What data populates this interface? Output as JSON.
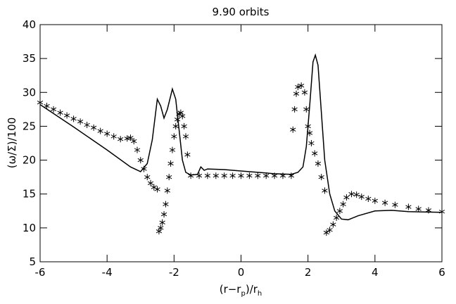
{
  "chart_data": {
    "type": "line",
    "title": "9.90 orbits",
    "x_label": [
      "(r−r",
      "p",
      ")/r",
      "h"
    ],
    "y_label": "(ω/Σ)/100",
    "xlim": [
      -6,
      6
    ],
    "xticks": [
      -6,
      -4,
      -2,
      0,
      2,
      4,
      6
    ],
    "ylim": [
      5,
      40
    ],
    "yticks": [
      5,
      10,
      15,
      20,
      25,
      30,
      35,
      40
    ],
    "color": "#000000",
    "series": [
      {
        "style": "solid",
        "x": [
          -6,
          -5,
          -4,
          -3.3,
          -3.0,
          -2.8,
          -2.65,
          -2.5,
          -2.4,
          -2.3,
          -2.2,
          -2.05,
          -1.95,
          -1.85,
          -1.75,
          -1.65,
          -1.5,
          -1.3,
          -1.2,
          -1.1,
          -1.0,
          -0.5,
          0,
          0.5,
          1.0,
          1.5,
          1.7,
          1.85,
          1.95,
          2.05,
          2.15,
          2.22,
          2.3,
          2.4,
          2.5,
          2.65,
          2.8,
          3.0,
          3.2,
          3.5,
          4.0,
          4.5,
          5.0,
          6.0
        ],
        "values": [
          28.2,
          24.9,
          21.5,
          19.0,
          18.3,
          19.5,
          23,
          29.0,
          28.0,
          26.2,
          27.5,
          30.5,
          29.0,
          24.5,
          20.0,
          18.2,
          17.8,
          17.9,
          19.0,
          18.5,
          18.7,
          18.6,
          18.4,
          18.2,
          18.0,
          17.9,
          18.2,
          19.0,
          22.0,
          28.0,
          34.5,
          35.5,
          34.0,
          27.0,
          20.0,
          15.0,
          12.5,
          11.3,
          11.2,
          11.8,
          12.5,
          12.6,
          12.4,
          12.3
        ]
      },
      {
        "style": "asterisk",
        "x": [
          -6,
          -5.8,
          -5.6,
          -5.4,
          -5.2,
          -5.0,
          -4.8,
          -4.6,
          -4.4,
          -4.2,
          -4.0,
          -3.8,
          -3.6,
          -3.4,
          -3.3,
          -3.2,
          -3.1,
          -3.0,
          -2.9,
          -2.8,
          -2.7,
          -2.6,
          -2.5,
          -2.45,
          -2.4,
          -2.35,
          -2.3,
          -2.25,
          -2.2,
          -2.15,
          -2.1,
          -2.05,
          -2.0,
          -1.95,
          -1.9,
          -1.85,
          -1.8,
          -1.75,
          -1.7,
          -1.65,
          -1.6,
          -1.5,
          -1.25,
          -1.0,
          -0.75,
          -0.5,
          -0.25,
          0,
          0.25,
          0.5,
          0.75,
          1.0,
          1.25,
          1.5,
          1.55,
          1.6,
          1.65,
          1.7,
          1.8,
          1.9,
          1.95,
          2.0,
          2.05,
          2.1,
          2.2,
          2.3,
          2.4,
          2.5,
          2.55,
          2.65,
          2.75,
          2.85,
          2.95,
          3.05,
          3.15,
          3.3,
          3.45,
          3.6,
          3.8,
          4.0,
          4.3,
          4.6,
          5.0,
          5.3,
          5.6,
          6.0
        ],
        "values": [
          28.5,
          28.0,
          27.5,
          27.0,
          26.6,
          26.1,
          25.7,
          25.2,
          24.8,
          24.3,
          23.9,
          23.5,
          23.1,
          23.2,
          23.3,
          22.8,
          21.5,
          20.0,
          18.7,
          17.5,
          16.6,
          16.0,
          15.7,
          9.5,
          10.0,
          10.8,
          12.0,
          13.5,
          15.5,
          17.5,
          19.5,
          21.5,
          23.5,
          25.0,
          26.0,
          26.8,
          27.0,
          26.5,
          25.0,
          23.5,
          20.8,
          17.7,
          17.7,
          17.7,
          17.7,
          17.7,
          17.7,
          17.7,
          17.7,
          17.7,
          17.7,
          17.7,
          17.7,
          17.7,
          24.5,
          27.5,
          29.8,
          30.8,
          31.0,
          30.0,
          27.5,
          25.0,
          24.0,
          22.5,
          21.0,
          19.5,
          17.5,
          15.5,
          9.3,
          9.7,
          10.5,
          11.5,
          12.5,
          13.5,
          14.5,
          15.0,
          14.9,
          14.6,
          14.3,
          14.0,
          13.7,
          13.4,
          13.1,
          12.8,
          12.6,
          12.4
        ]
      }
    ]
  }
}
